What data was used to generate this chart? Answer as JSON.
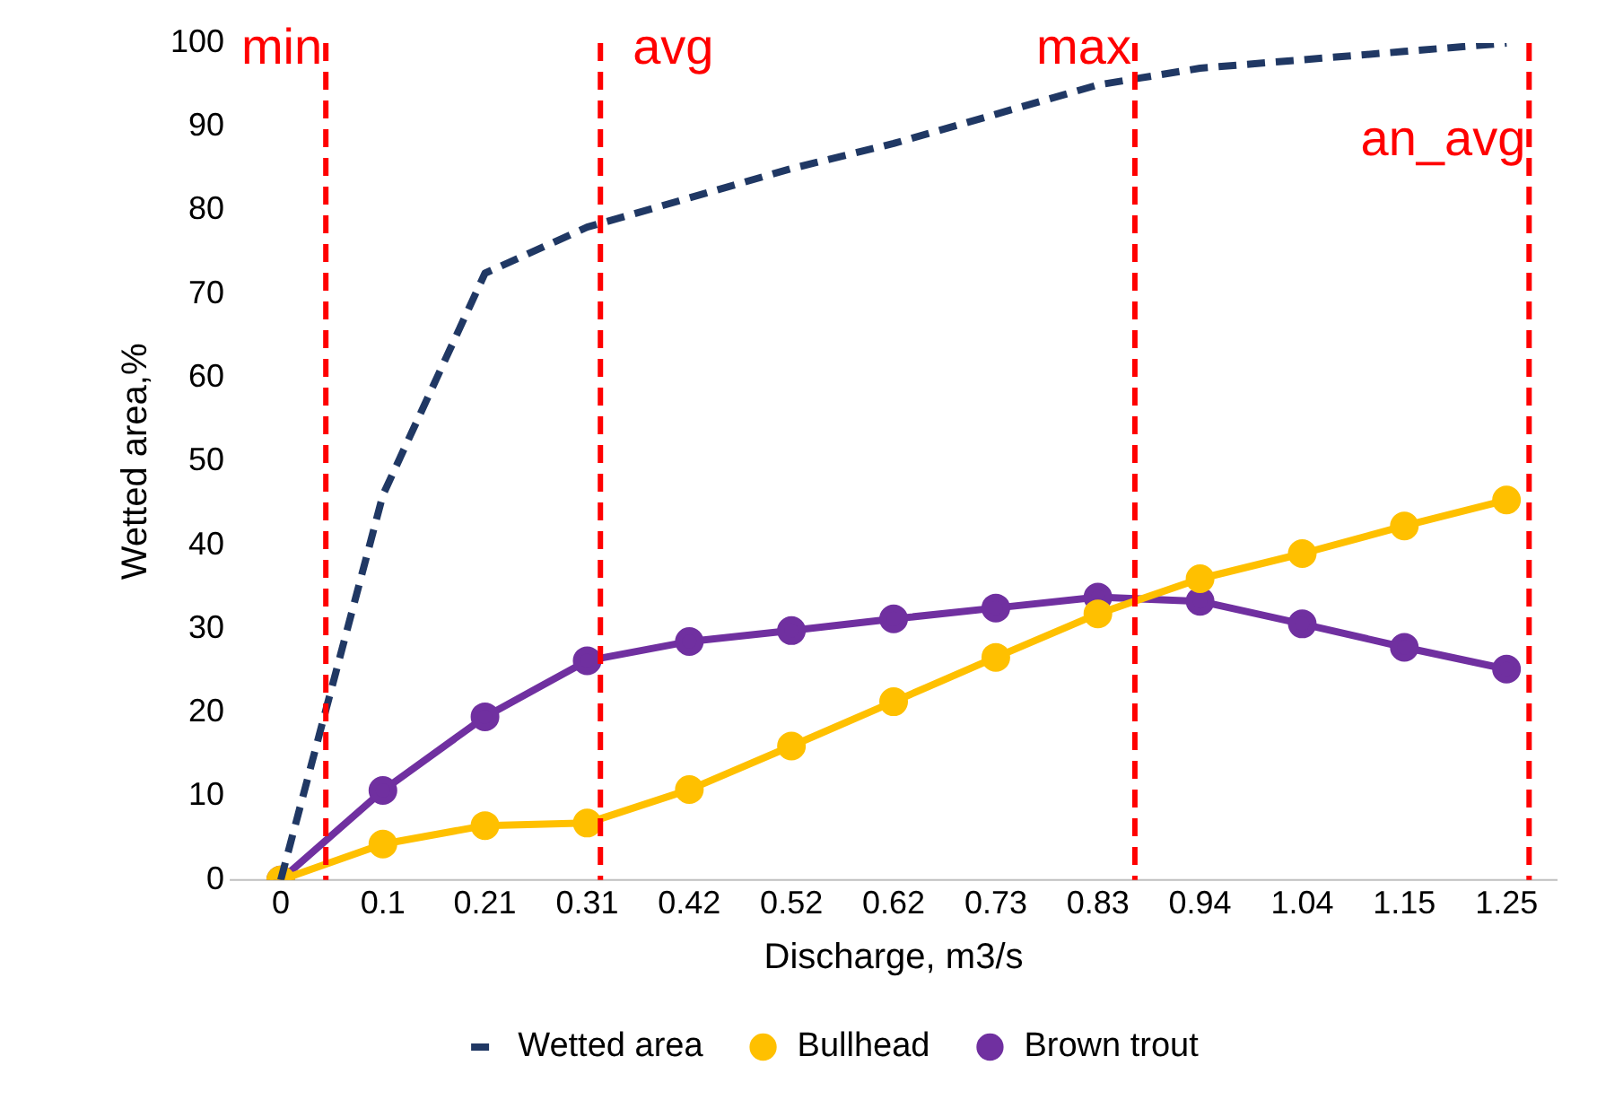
{
  "chart_data": {
    "type": "line",
    "xlabel": "Discharge, m3/s",
    "ylabel": "Wetted area,%",
    "x": [
      0,
      0.1042,
      0.2083,
      0.3125,
      0.4167,
      0.5208,
      0.625,
      0.7292,
      0.8333,
      0.9375,
      1.0417,
      1.1458,
      1.25
    ],
    "xlim": [
      -0.052,
      1.302
    ],
    "xticks": [
      {
        "value": 0,
        "label": "0"
      },
      {
        "value": 0.1042,
        "label": "0.1"
      },
      {
        "value": 0.2083,
        "label": "0.21"
      },
      {
        "value": 0.3125,
        "label": "0.31"
      },
      {
        "value": 0.4167,
        "label": "0.42"
      },
      {
        "value": 0.5208,
        "label": "0.52"
      },
      {
        "value": 0.625,
        "label": "0.62"
      },
      {
        "value": 0.7292,
        "label": "0.73"
      },
      {
        "value": 0.8333,
        "label": "0.83"
      },
      {
        "value": 0.9375,
        "label": "0.94"
      },
      {
        "value": 1.0417,
        "label": "1.04"
      },
      {
        "value": 1.1458,
        "label": "1.15"
      },
      {
        "value": 1.25,
        "label": "1.25"
      }
    ],
    "ylim": [
      0,
      100
    ],
    "yticks": [
      0,
      10,
      20,
      30,
      40,
      50,
      60,
      70,
      80,
      90,
      100
    ],
    "series": [
      {
        "name": "Wetted area",
        "color": "#203864",
        "line_style": "dashed",
        "marker": "none",
        "values": [
          0,
          46,
          72.5,
          78,
          81.5,
          85,
          88,
          91.5,
          95,
          97,
          98,
          99,
          100
        ]
      },
      {
        "name": "Bullhead",
        "color": "#ffc000",
        "line_style": "solid",
        "marker": "circle",
        "values": [
          0,
          4.3,
          6.5,
          6.8,
          10.8,
          16,
          21.3,
          26.6,
          31.8,
          36,
          39,
          42.3,
          45.4
        ]
      },
      {
        "name": "Brown trout",
        "color": "#7030a0",
        "line_style": "solid",
        "marker": "circle",
        "values": [
          0,
          10.7,
          19.5,
          26.2,
          28.5,
          29.8,
          31.2,
          32.5,
          33.8,
          33.3,
          30.6,
          27.8,
          25.2
        ]
      }
    ],
    "ref_lines": [
      {
        "axis": "x",
        "value": 0.046,
        "label": "min",
        "color": "#ff0000",
        "line_style": "dashed"
      },
      {
        "axis": "x",
        "value": 0.326,
        "label": "avg",
        "color": "#ff0000",
        "line_style": "dashed"
      },
      {
        "axis": "x",
        "value": 0.871,
        "label": "max",
        "color": "#ff0000",
        "line_style": "dashed"
      },
      {
        "axis": "x",
        "value": 1.273,
        "label": "an_avg",
        "color": "#ff0000",
        "line_style": "dashed"
      }
    ],
    "grid": false,
    "legend": "bottom"
  }
}
